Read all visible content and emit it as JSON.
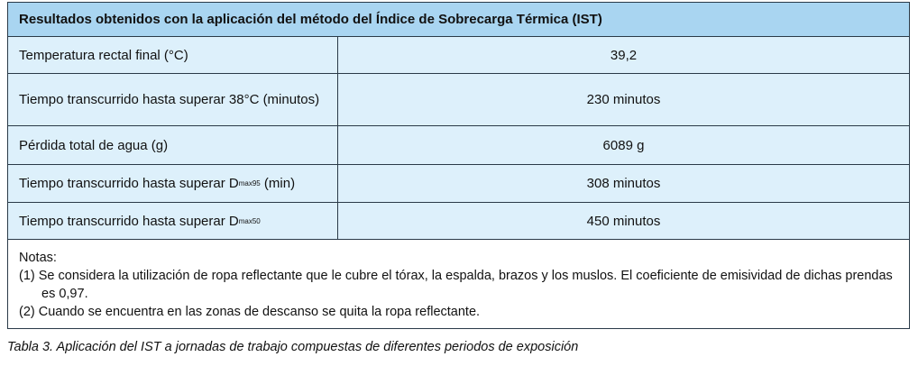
{
  "title": "Resultados obtenidos con la aplicación del método del Índice de Sobrecarga Térmica (IST)",
  "rows": [
    {
      "label": "Temperatura rectal final (°C)",
      "value": "39,2"
    },
    {
      "label": "Tiempo transcurrido hasta superar 38°C (minutos)",
      "value": "230 minutos"
    },
    {
      "label": "Pérdida total de agua (g)",
      "value": "6089 g"
    },
    {
      "label": "Tiempo transcurrido hasta superar D",
      "sub": "max95",
      "suffix": " (min)",
      "value": "308 minutos"
    },
    {
      "label": "Tiempo transcurrido hasta superar D",
      "sub": "max50",
      "value": "450 minutos"
    }
  ],
  "notes": {
    "heading": "Notas:",
    "items": [
      "(1) Se considera la utilización de ropa reflectante que le cubre el tórax, la espalda, brazos y los muslos. El coeficiente de emisividad de dichas prendas es 0,97.",
      "(2) Cuando se encuentra en las zonas de descanso se quita la ropa reflectante."
    ]
  },
  "caption": "Tabla 3. Aplicación del IST a jornadas de trabajo compuestas de diferentes periodos de exposición",
  "colors": {
    "header": "#a9d5f1",
    "row": "#ddf0fb",
    "border": "#2a3a48"
  }
}
